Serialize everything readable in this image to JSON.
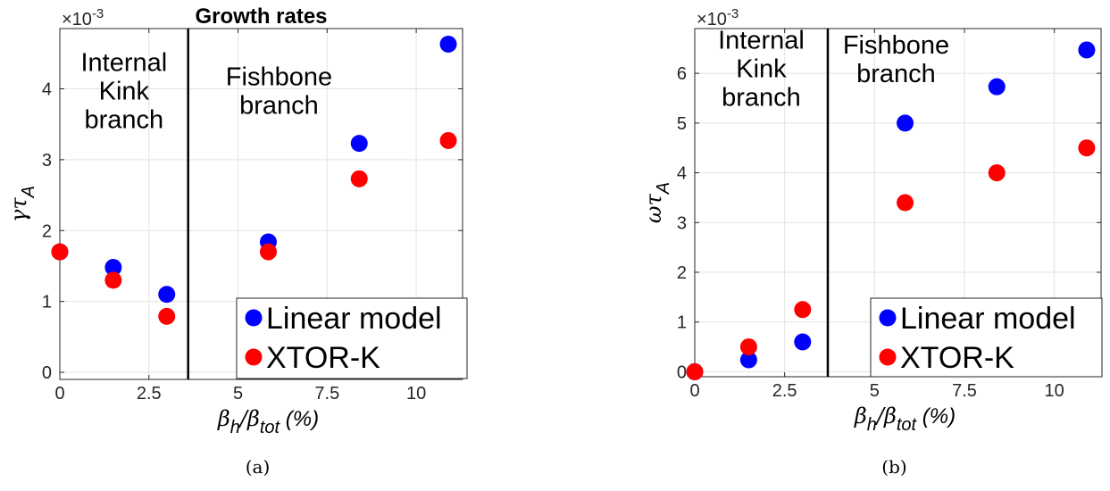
{
  "chart_data": [
    {
      "type": "scatter",
      "title": "Growth rates",
      "xlabel": {
        "prefix": "β",
        "sub1": "h",
        "slash": "/β",
        "sub2": "tot",
        "suffix": " (%)"
      },
      "ylabel": {
        "main": "γτ",
        "sub": "A"
      },
      "xlim": [
        0,
        11.3
      ],
      "ylim": [
        -0.1,
        4.85
      ],
      "multiplier": {
        "base": "×10",
        "exp": "-3"
      },
      "xticks": [
        0,
        2.5,
        5,
        7.5,
        10
      ],
      "xtick_labels": [
        "0",
        "2.5",
        "5",
        "7.5",
        "10"
      ],
      "yticks": [
        0,
        1,
        2,
        3,
        4
      ],
      "ytick_labels": [
        "0",
        "1",
        "2",
        "3",
        "4"
      ],
      "grid": true,
      "divider_x": 3.6,
      "annotations": [
        {
          "lines": [
            "Internal",
            "Kink",
            "branch"
          ],
          "x": 1.8,
          "y": 4.25
        },
        {
          "lines": [
            "Fishbone",
            "branch"
          ],
          "x": 6.15,
          "y": 4.05
        }
      ],
      "series": [
        {
          "name": "Linear model",
          "color": "#0000ff",
          "x": [
            0,
            1.5,
            3.0,
            5.85,
            8.4,
            10.9
          ],
          "y": [
            1.7,
            1.48,
            1.1,
            1.84,
            3.23,
            4.63
          ]
        },
        {
          "name": "XTOR-K",
          "color": "#ff0000",
          "x": [
            0,
            1.5,
            3.0,
            5.85,
            8.4,
            10.9
          ],
          "y": [
            1.7,
            1.3,
            0.79,
            1.7,
            2.73,
            3.27
          ]
        }
      ],
      "legend_position": "bottom-right",
      "caption": "(a)"
    },
    {
      "type": "scatter",
      "title": "",
      "xlabel": {
        "prefix": "β",
        "sub1": "h",
        "slash": "/β",
        "sub2": "tot",
        "suffix": " (%)"
      },
      "ylabel": {
        "main": "ωτ",
        "sub": "A"
      },
      "xlim": [
        0,
        11.3
      ],
      "ylim": [
        -0.1,
        6.9
      ],
      "multiplier": {
        "base": "×10",
        "exp": "-3"
      },
      "xticks": [
        0,
        2.5,
        5,
        7.5,
        10
      ],
      "xtick_labels": [
        "0",
        "2.5",
        "5",
        "7.5",
        "10"
      ],
      "yticks": [
        0,
        1,
        2,
        3,
        4,
        5,
        6
      ],
      "ytick_labels": [
        "0",
        "1",
        "2",
        "3",
        "4",
        "5",
        "6"
      ],
      "grid": true,
      "divider_x": 3.7,
      "annotations": [
        {
          "lines": [
            "Internal",
            "Kink",
            "branch"
          ],
          "x": 1.85,
          "y": 6.5
        },
        {
          "lines": [
            "Fishbone",
            "branch"
          ],
          "x": 5.6,
          "y": 6.4
        }
      ],
      "series": [
        {
          "name": "Linear model",
          "color": "#0000ff",
          "x": [
            0,
            1.5,
            3.0,
            5.85,
            8.4,
            10.9
          ],
          "y": [
            0.0,
            0.24,
            0.6,
            5.0,
            5.73,
            6.47
          ]
        },
        {
          "name": "XTOR-K",
          "color": "#ff0000",
          "x": [
            0,
            1.5,
            3.0,
            5.85,
            8.4,
            10.9
          ],
          "y": [
            0.0,
            0.5,
            1.25,
            3.4,
            4.0,
            4.5
          ]
        }
      ],
      "legend_position": "bottom-right",
      "caption": "(b)"
    }
  ]
}
